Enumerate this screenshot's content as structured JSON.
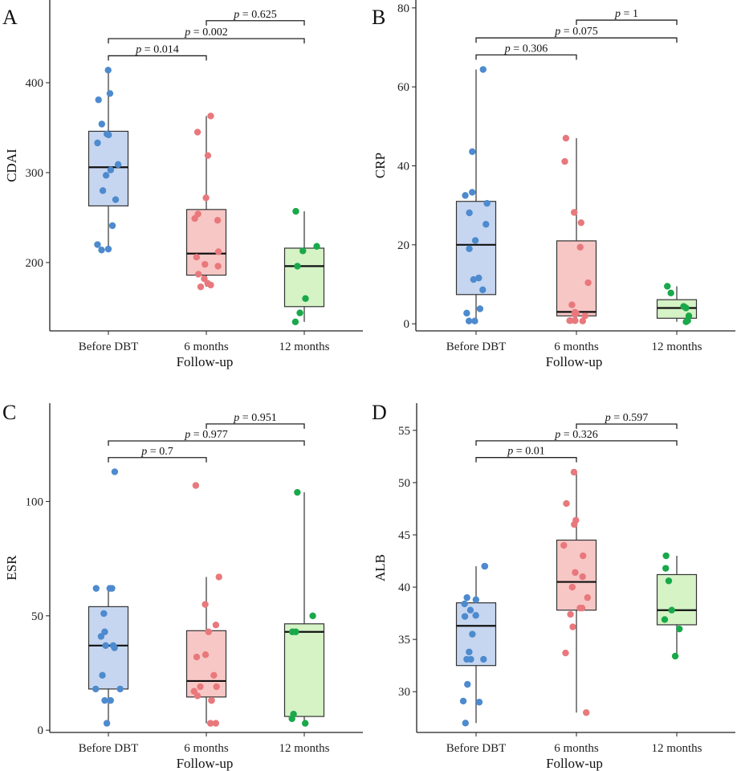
{
  "chart_data": [
    {
      "panel": "A",
      "type": "box",
      "ylabel": "CDAI",
      "xlabel": "Follow-up",
      "categories": [
        "Before DBT",
        "6 months",
        "12 months"
      ],
      "ylim": [
        124,
        492
      ],
      "yticks": [
        200,
        300,
        400
      ],
      "colors": {
        "fill": [
          "#c6d6f0",
          "#f7c7c5",
          "#d5f3c5"
        ],
        "point": [
          "#4d8ace",
          "#e8787c",
          "#19a84a"
        ]
      },
      "boxes": [
        {
          "q1": 263,
          "median": 306,
          "q3": 346,
          "low": 214,
          "high": 414
        },
        {
          "q1": 186,
          "median": 210,
          "q3": 259,
          "low": 173,
          "high": 363
        },
        {
          "q1": 151,
          "median": 196,
          "q3": 216,
          "low": 134,
          "high": 257
        }
      ],
      "points": [
        [
          414,
          388,
          381,
          354,
          343,
          342,
          333,
          309,
          303,
          297,
          280,
          270,
          241,
          220,
          215,
          214
        ],
        [
          363,
          345,
          319,
          272,
          254,
          249,
          247,
          212,
          206,
          198,
          196,
          187,
          182,
          177,
          175,
          173
        ],
        [
          257,
          218,
          213,
          196,
          160,
          144,
          134
        ]
      ],
      "comparisons": [
        {
          "from": 0,
          "to": 1,
          "y": 430,
          "p_label": "p",
          "p_value": "= 0.014"
        },
        {
          "from": 0,
          "to": 2,
          "y": 449,
          "p_label": "p",
          "p_value": "= 0.002"
        },
        {
          "from": 1,
          "to": 2,
          "y": 469,
          "p_label": "p",
          "p_value": "= 0.625"
        }
      ]
    },
    {
      "panel": "B",
      "type": "box",
      "ylabel": "CRP",
      "xlabel": "Follow-up",
      "categories": [
        "Before DBT",
        "6 months",
        "12 months"
      ],
      "ylim": [
        -1.8,
        82
      ],
      "yticks": [
        0,
        20,
        40,
        60,
        80
      ],
      "colors": {
        "fill": [
          "#c6d6f0",
          "#f7c7c5",
          "#d5f3c5"
        ],
        "point": [
          "#4d8ace",
          "#e8787c",
          "#19a84a"
        ]
      },
      "boxes": [
        {
          "q1": 7.4,
          "median": 20,
          "q3": 31,
          "low": 0.7,
          "high": 64.4
        },
        {
          "q1": 2.0,
          "median": 3.0,
          "q3": 21.0,
          "low": 0.7,
          "high": 47
        },
        {
          "q1": 1.4,
          "median": 4.0,
          "q3": 6.1,
          "low": 0.5,
          "high": 9.5
        }
      ],
      "points": [
        [
          64.4,
          43.6,
          33.3,
          32.5,
          30.5,
          28.1,
          25.2,
          21.1,
          19.0,
          11.6,
          11.2,
          8.6,
          3.8,
          2.7,
          0.7,
          0.7
        ],
        [
          47,
          41.1,
          28.2,
          25.6,
          19.4,
          10.4,
          4.8,
          2.9,
          2.7,
          2.4,
          2.0,
          0.8,
          0.8,
          0.8,
          0.8,
          0.7
        ],
        [
          9.5,
          7.8,
          4.4,
          4.0,
          2.0,
          0.8,
          0.5
        ]
      ],
      "comparisons": [
        {
          "from": 0,
          "to": 1,
          "y": 68.1,
          "p_label": "p",
          "p_value": "= 0.306"
        },
        {
          "from": 0,
          "to": 2,
          "y": 72.4,
          "p_label": "p",
          "p_value": "= 0.075"
        },
        {
          "from": 1,
          "to": 2,
          "y": 76.9,
          "p_label": "p",
          "p_value": "= 1"
        }
      ]
    },
    {
      "panel": "C",
      "type": "box",
      "ylabel": "ESR",
      "xlabel": "Follow-up",
      "categories": [
        "Before DBT",
        "6 months",
        "12 months"
      ],
      "ylim": [
        -1,
        143
      ],
      "yticks": [
        0,
        50,
        100
      ],
      "colors": {
        "fill": [
          "#c6d6f0",
          "#f7c7c5",
          "#d5f3c5"
        ],
        "point": [
          "#4d8ace",
          "#e8787c",
          "#19a84a"
        ]
      },
      "boxes": [
        {
          "q1": 18,
          "median": 37,
          "q3": 54,
          "low": 3,
          "high": 62
        },
        {
          "q1": 14.5,
          "median": 21.5,
          "q3": 43.5,
          "low": 3,
          "high": 67
        },
        {
          "q1": 6,
          "median": 43,
          "q3": 46.5,
          "low": 3,
          "high": 104
        }
      ],
      "points": [
        [
          113,
          62,
          62,
          62,
          51,
          43,
          41,
          37,
          37,
          36,
          24,
          18,
          18,
          13,
          13,
          3
        ],
        [
          107,
          67,
          55,
          46,
          43,
          33,
          32,
          24,
          19,
          19,
          17,
          15,
          13,
          13,
          3,
          3
        ],
        [
          104,
          50,
          43,
          43,
          7,
          5,
          3
        ]
      ],
      "comparisons": [
        {
          "from": 0,
          "to": 1,
          "y": 119.2,
          "p_label": "p",
          "p_value": "= 0.7"
        },
        {
          "from": 0,
          "to": 2,
          "y": 126.5,
          "p_label": "p",
          "p_value": "= 0.977"
        },
        {
          "from": 1,
          "to": 2,
          "y": 133.9,
          "p_label": "p",
          "p_value": "= 0.951"
        }
      ]
    },
    {
      "panel": "D",
      "type": "box",
      "ylabel": "ALB",
      "xlabel": "Follow-up",
      "categories": [
        "Before DBT",
        "6 months",
        "12 months"
      ],
      "ylim": [
        26.1,
        57.6
      ],
      "yticks": [
        30,
        35,
        40,
        45,
        50,
        55
      ],
      "colors": {
        "fill": [
          "#c6d6f0",
          "#f7c7c5",
          "#d5f3c5"
        ],
        "point": [
          "#4d8ace",
          "#e8787c",
          "#19a84a"
        ]
      },
      "boxes": [
        {
          "q1": 32.5,
          "median": 36.3,
          "q3": 38.5,
          "low": 27,
          "high": 42
        },
        {
          "q1": 37.8,
          "median": 40.5,
          "q3": 44.5,
          "low": 28,
          "high": 51
        },
        {
          "q1": 36.4,
          "median": 37.8,
          "q3": 41.2,
          "low": 33.4,
          "high": 43
        }
      ],
      "points": [
        [
          42,
          42,
          39,
          38.8,
          38.4,
          37.8,
          37.3,
          37.2,
          35.5,
          33.8,
          33.1,
          33.1,
          33.1,
          30.7,
          29.1,
          29.0,
          27
        ],
        [
          51,
          48,
          46.4,
          46,
          44,
          43,
          41.4,
          41,
          40,
          39,
          38,
          38,
          37.4,
          36.2,
          33.7,
          28
        ],
        [
          43,
          41.8,
          40.6,
          37.8,
          36.9,
          36,
          33.4
        ]
      ],
      "comparisons": [
        {
          "from": 0,
          "to": 1,
          "y": 52.4,
          "p_label": "p",
          "p_value": "= 0.01"
        },
        {
          "from": 0,
          "to": 2,
          "y": 54.0,
          "p_label": "p",
          "p_value": "= 0.326"
        },
        {
          "from": 1,
          "to": 2,
          "y": 55.6,
          "p_label": "p",
          "p_value": "= 0.597"
        }
      ]
    }
  ]
}
